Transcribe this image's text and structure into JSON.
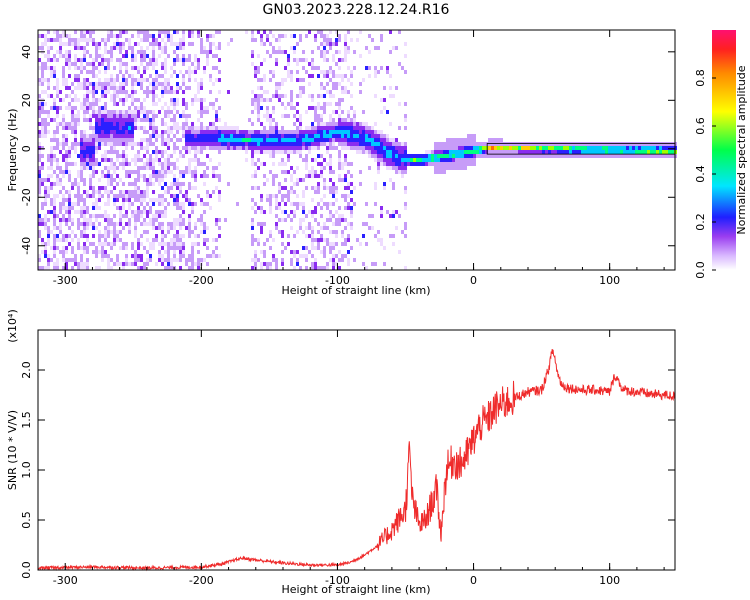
{
  "title": "GN03.2023.228.12.24.R16",
  "colors": {
    "snr_line": "#ef2b2b",
    "colormap": [
      "#ffffff",
      "#e9d2ff",
      "#9a3df0",
      "#1f1fff",
      "#00e6ff",
      "#00ff4a",
      "#ffff00",
      "#ff8a00",
      "#ff1050"
    ]
  },
  "chart_data": [
    {
      "type": "heatmap",
      "ylabel": "Frequency (Hz)",
      "xlabel": "Height of straight line (km)",
      "xlim": [
        -320,
        148
      ],
      "ylim": [
        -50,
        49
      ],
      "xticks": [
        -300,
        -200,
        -100,
        0,
        100
      ],
      "yticks": [
        -40,
        -20,
        0,
        20,
        40
      ],
      "colorbar": {
        "label": "Normalized spectral amplitude",
        "range": [
          0,
          1
        ],
        "ticks": [
          "0.0",
          "0.2",
          "0.4",
          "0.6",
          "0.8"
        ]
      },
      "ridge": [
        {
          "x": -280,
          "f": 10
        },
        {
          "x": -260,
          "f": 10
        },
        {
          "x": -215,
          "f": 5
        },
        {
          "x": -190,
          "f": 5
        },
        {
          "x": -150,
          "f": 4
        },
        {
          "x": -130,
          "f": 4
        },
        {
          "x": -100,
          "f": 8
        },
        {
          "x": -80,
          "f": 5
        },
        {
          "x": -60,
          "f": -2
        },
        {
          "x": -45,
          "f": -4
        },
        {
          "x": -30,
          "f": -3
        },
        {
          "x": -10,
          "f": -1
        },
        {
          "x": 10,
          "f": 1
        },
        {
          "x": 148,
          "f": 0
        }
      ]
    },
    {
      "type": "line",
      "ylabel": "SNR (10 * V/V)",
      "xlabel": "Height of straight line (km)",
      "multiplier": "(x10⁴)",
      "xlim": [
        -320,
        148
      ],
      "ylim": [
        0,
        2.4
      ],
      "xticks": [
        -300,
        -200,
        -100,
        0,
        100
      ],
      "yticks": [
        "0.0",
        "0.5",
        "1.0",
        "1.5",
        "2.0"
      ],
      "series": [
        {
          "x": [
            -320,
            -280,
            -240,
            -200,
            -185,
            -170,
            -160,
            -140,
            -120,
            -100,
            -90,
            -80,
            -70,
            -60,
            -55,
            -50,
            -47,
            -45,
            -40,
            -35,
            -30,
            -27,
            -24,
            -20,
            -15,
            -10,
            -5,
            0,
            5,
            10,
            15,
            20,
            30,
            40,
            50,
            55,
            58,
            60,
            62,
            65,
            70,
            80,
            90,
            100,
            104,
            110,
            120,
            130,
            148
          ],
          "y": [
            0.02,
            0.03,
            0.02,
            0.03,
            0.06,
            0.12,
            0.1,
            0.07,
            0.05,
            0.05,
            0.08,
            0.15,
            0.25,
            0.4,
            0.5,
            0.6,
            1.2,
            0.7,
            0.45,
            0.5,
            0.7,
            0.8,
            0.35,
            1.0,
            1.1,
            1.05,
            1.15,
            1.3,
            1.45,
            1.5,
            1.6,
            1.65,
            1.72,
            1.78,
            1.8,
            2.0,
            2.2,
            2.1,
            1.95,
            1.85,
            1.82,
            1.8,
            1.8,
            1.78,
            1.95,
            1.8,
            1.78,
            1.76,
            1.74
          ]
        }
      ]
    }
  ]
}
